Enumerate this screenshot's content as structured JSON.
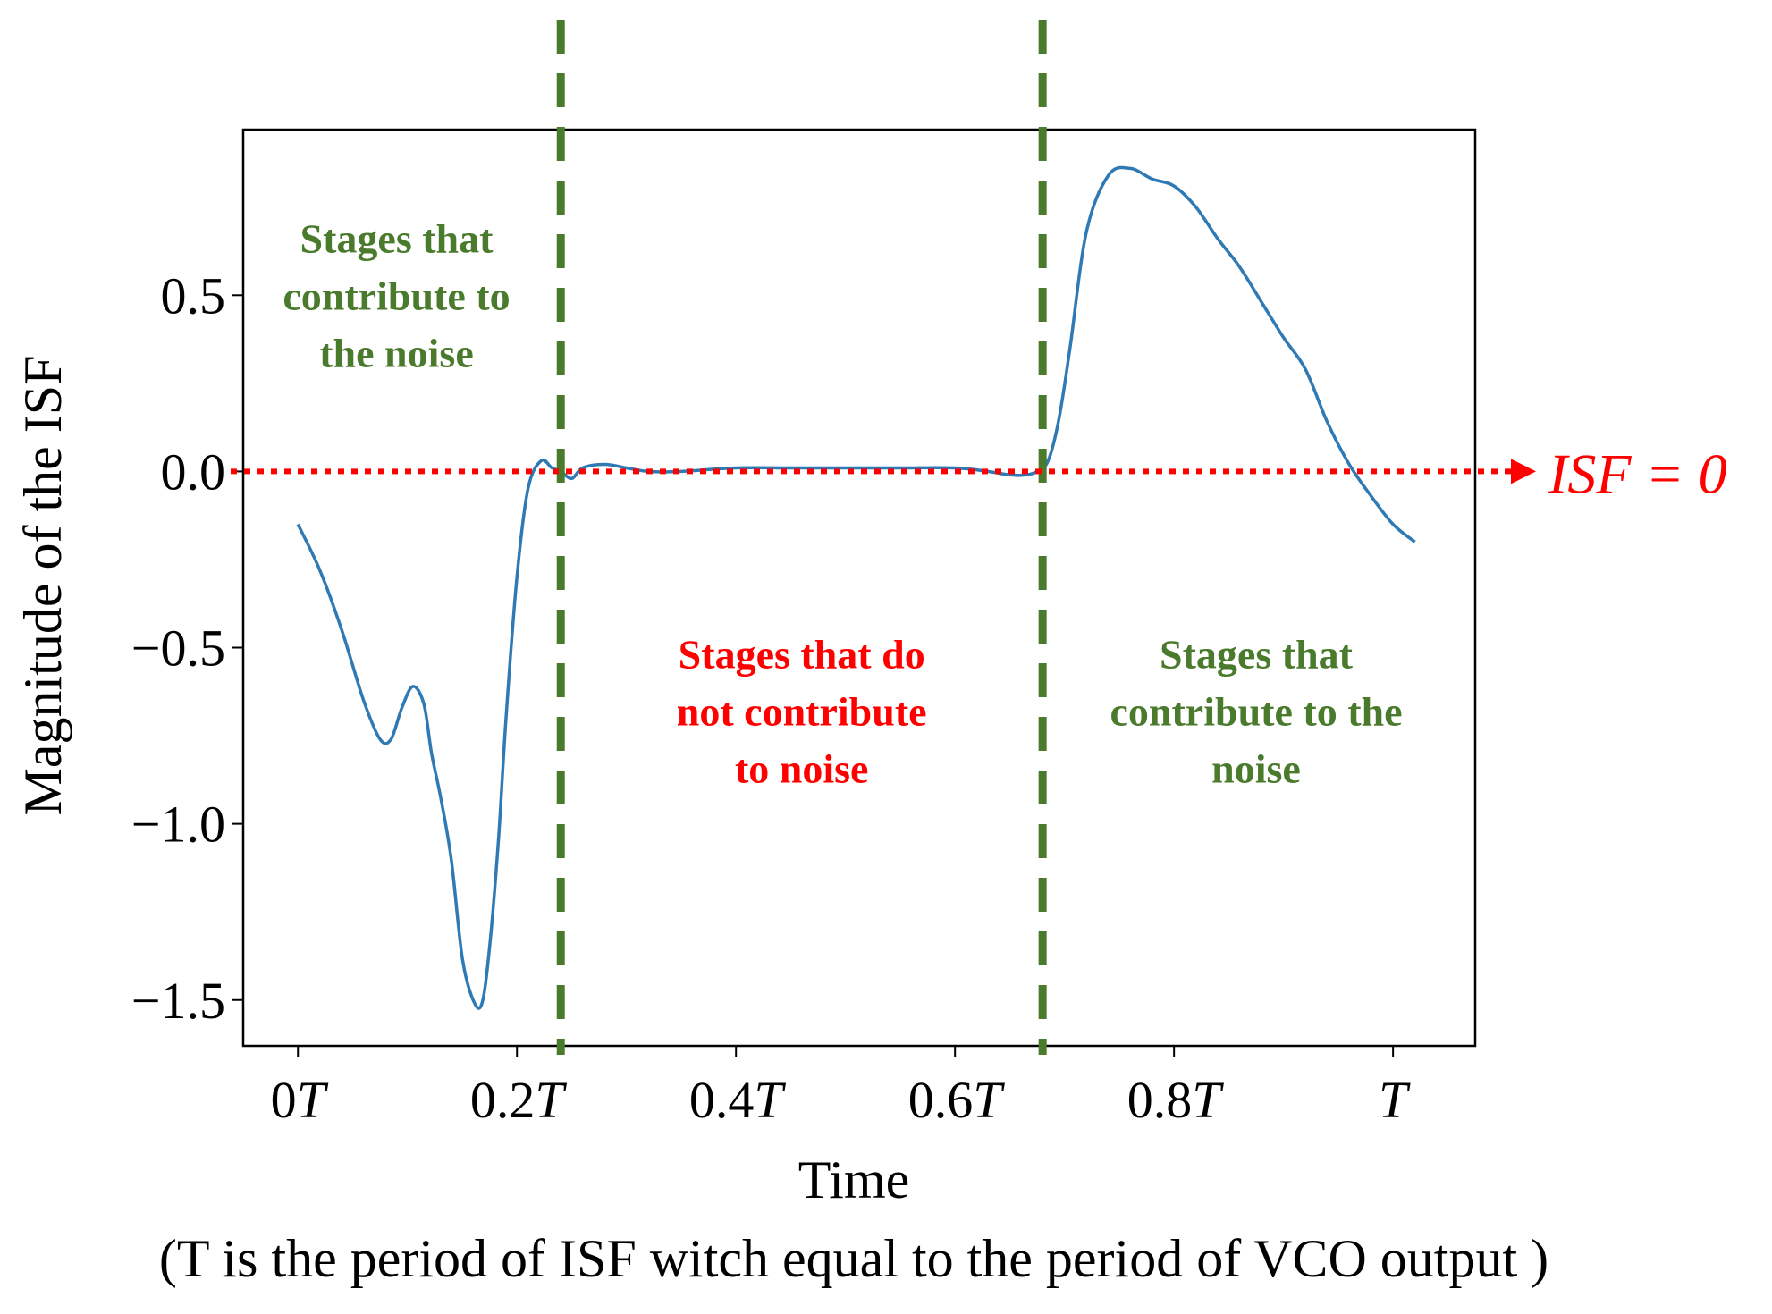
{
  "chart_data": {
    "type": "line",
    "title": "",
    "xlabel": "Time",
    "ylabel": "Magnitude of the ISF",
    "caption": "(T is the period of ISF witch equal to the period of VCO output )",
    "xlim": [
      -0.05,
      1.075
    ],
    "ylim": [
      -1.63,
      0.97
    ],
    "x_ticks": [
      0,
      0.2,
      0.4,
      0.6,
      0.8,
      1.0
    ],
    "x_tick_labels": [
      "0T",
      "0.2T",
      "0.4T",
      "0.6T",
      "0.8T",
      "T"
    ],
    "y_ticks": [
      0.5,
      0.0,
      -0.5,
      -1.0,
      -1.5
    ],
    "y_tick_labels": [
      "0.5",
      "0.0",
      "−0.5",
      "−1.0",
      "−1.5"
    ],
    "series": [
      {
        "name": "ISF",
        "color": "#2f7ab4",
        "x": [
          0.0,
          0.02,
          0.04,
          0.06,
          0.075,
          0.085,
          0.095,
          0.105,
          0.115,
          0.122,
          0.13,
          0.14,
          0.15,
          0.16,
          0.168,
          0.175,
          0.183,
          0.19,
          0.2,
          0.21,
          0.222,
          0.232,
          0.24,
          0.25,
          0.26,
          0.28,
          0.3,
          0.32,
          0.35,
          0.4,
          0.45,
          0.5,
          0.55,
          0.6,
          0.63,
          0.65,
          0.665,
          0.675,
          0.685,
          0.695,
          0.705,
          0.72,
          0.74,
          0.76,
          0.78,
          0.8,
          0.82,
          0.84,
          0.86,
          0.88,
          0.9,
          0.92,
          0.94,
          0.96,
          0.98,
          1.0,
          1.02
        ],
        "y": [
          -0.15,
          -0.28,
          -0.45,
          -0.65,
          -0.76,
          -0.76,
          -0.67,
          -0.61,
          -0.66,
          -0.8,
          -0.92,
          -1.1,
          -1.38,
          -1.5,
          -1.51,
          -1.35,
          -1.05,
          -0.7,
          -0.3,
          -0.05,
          0.03,
          0.01,
          0.0,
          -0.02,
          0.01,
          0.02,
          0.01,
          0.0,
          0.0,
          0.01,
          0.01,
          0.01,
          0.01,
          0.01,
          0.0,
          -0.01,
          -0.01,
          0.0,
          0.03,
          0.15,
          0.35,
          0.68,
          0.84,
          0.86,
          0.83,
          0.81,
          0.75,
          0.66,
          0.58,
          0.48,
          0.38,
          0.29,
          0.14,
          0.02,
          -0.07,
          -0.15,
          -0.2
        ]
      }
    ],
    "reference_line": {
      "y": 0.0,
      "label": "ISF = 0",
      "color": "#ff0000",
      "style": "dotted-arrow"
    },
    "vertical_lines": [
      {
        "x": 0.24,
        "color": "#4a7a2c",
        "style": "dashed"
      },
      {
        "x": 0.68,
        "color": "#4a7a2c",
        "style": "dashed"
      }
    ],
    "annotations": [
      {
        "lines": [
          "Stages that",
          "contribute to",
          "the noise"
        ],
        "color": "#4a7a2c",
        "x": 0.09,
        "y": 0.5
      },
      {
        "lines": [
          "Stages that do",
          "not contribute",
          "to noise"
        ],
        "color": "#ff0000",
        "x": 0.46,
        "y": -0.68
      },
      {
        "lines": [
          "Stages that",
          "contribute to the",
          "noise"
        ],
        "color": "#4a7a2c",
        "x": 0.875,
        "y": -0.68
      }
    ],
    "frame_color": "#000000"
  }
}
